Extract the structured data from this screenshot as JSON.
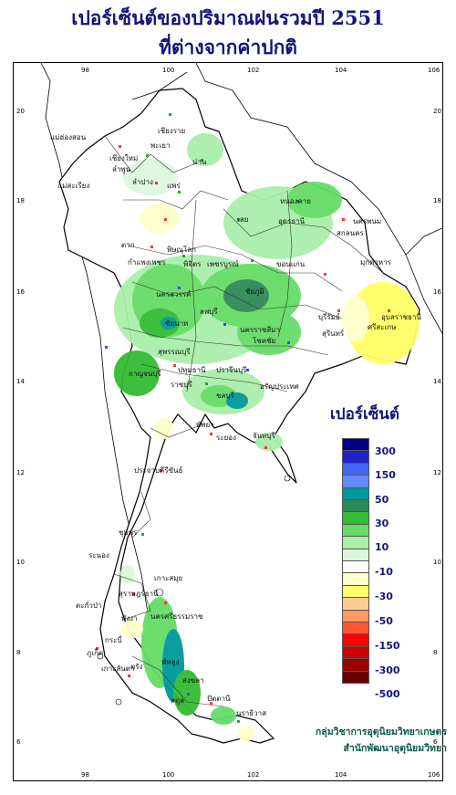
{
  "title": {
    "line1": "เปอร์เซ็นต์ของปริมาณฝนรวมปี  2551",
    "line2": "ที่ต่างจากค่าปกติ"
  },
  "axes": {
    "lon_ticks": [
      "98",
      "100",
      "102",
      "104",
      "106"
    ],
    "lat_ticks": [
      "20",
      "18",
      "16",
      "14",
      "12",
      "10",
      "8",
      "6"
    ]
  },
  "legend": {
    "title": "เปอร์เซ็นต์",
    "swatches": [
      "#000080",
      "#2222cc",
      "#4466ee",
      "#6688ff",
      "#009999",
      "#2e8b57",
      "#33bb33",
      "#66dd66",
      "#aaeeaa",
      "#ddf7dd",
      "#ffffff",
      "#ffffcc",
      "#ffff66",
      "#ffcc99",
      "#ff9966",
      "#ff5533",
      "#ff0000",
      "#cc0000",
      "#990000",
      "#660000"
    ],
    "labels": [
      "300",
      "150",
      "50",
      "30",
      "10",
      "-10",
      "-30",
      "-50",
      "-150",
      "-300",
      "-500"
    ]
  },
  "credit": {
    "line1": "กลุ่มวิชาการอุตุนิยมวิทยาเกษตร",
    "line2": "สำนักพัฒนาอุตุนิยมวิทยา"
  },
  "places": [
    {
      "name": "เชียงราย"
    },
    {
      "name": "แม่ฮ่องสอน"
    },
    {
      "name": "เชียงใหม่"
    },
    {
      "name": "ลำพูน"
    },
    {
      "name": "ลำปาง"
    },
    {
      "name": "พะเยา"
    },
    {
      "name": "น่าน"
    },
    {
      "name": "แพร่"
    },
    {
      "name": "แม่สะเรียง"
    },
    {
      "name": "หนองคาย"
    },
    {
      "name": "อุดรธานี"
    },
    {
      "name": "นครพนม"
    },
    {
      "name": "สกลนคร"
    },
    {
      "name": "เลย"
    },
    {
      "name": "ตาก"
    },
    {
      "name": "พิษณุโลก"
    },
    {
      "name": "มุกดาหาร"
    },
    {
      "name": "กำแพงเพชร"
    },
    {
      "name": "พิจิตร"
    },
    {
      "name": "เพชรบูรณ์"
    },
    {
      "name": "ขอนแก่น"
    },
    {
      "name": "นครสวรรค์"
    },
    {
      "name": "ชัยภูมิ"
    },
    {
      "name": "อุบลราชธานี"
    },
    {
      "name": "ชัยนาท"
    },
    {
      "name": "ลพบุรี"
    },
    {
      "name": "นครราชสีมา"
    },
    {
      "name": "บุรีรัมย์"
    },
    {
      "name": "สุรินทร์"
    },
    {
      "name": "ศรีสะเกษ"
    },
    {
      "name": "โชคชัย"
    },
    {
      "name": "สุพรรณบุรี"
    },
    {
      "name": "กาญจนบุรี"
    },
    {
      "name": "ปทุมธานี"
    },
    {
      "name": "ราชบุรี"
    },
    {
      "name": "ปราจีนบุรี"
    },
    {
      "name": "อรัญประเทศ"
    },
    {
      "name": "ชลบุรี"
    },
    {
      "name": "พัทยา"
    },
    {
      "name": "ระยอง"
    },
    {
      "name": "จันทบุรี"
    },
    {
      "name": "ประจวบคีรีขันธ์"
    },
    {
      "name": "ชุมพร"
    },
    {
      "name": "ระนอง"
    },
    {
      "name": "เกาะสมุย"
    },
    {
      "name": "สุราษฎร์ธานี"
    },
    {
      "name": "ตะกั่วป่า"
    },
    {
      "name": "พังงา"
    },
    {
      "name": "นครศรีธรรมราช"
    },
    {
      "name": "กระบี่"
    },
    {
      "name": "ภูเก็ต"
    },
    {
      "name": "ตรัง"
    },
    {
      "name": "พัทลุง"
    },
    {
      "name": "สงขลา"
    },
    {
      "name": "ปัตตานี"
    },
    {
      "name": "สตูล"
    },
    {
      "name": "นราธิวาส"
    },
    {
      "name": "เกาะลันตา"
    }
  ]
}
